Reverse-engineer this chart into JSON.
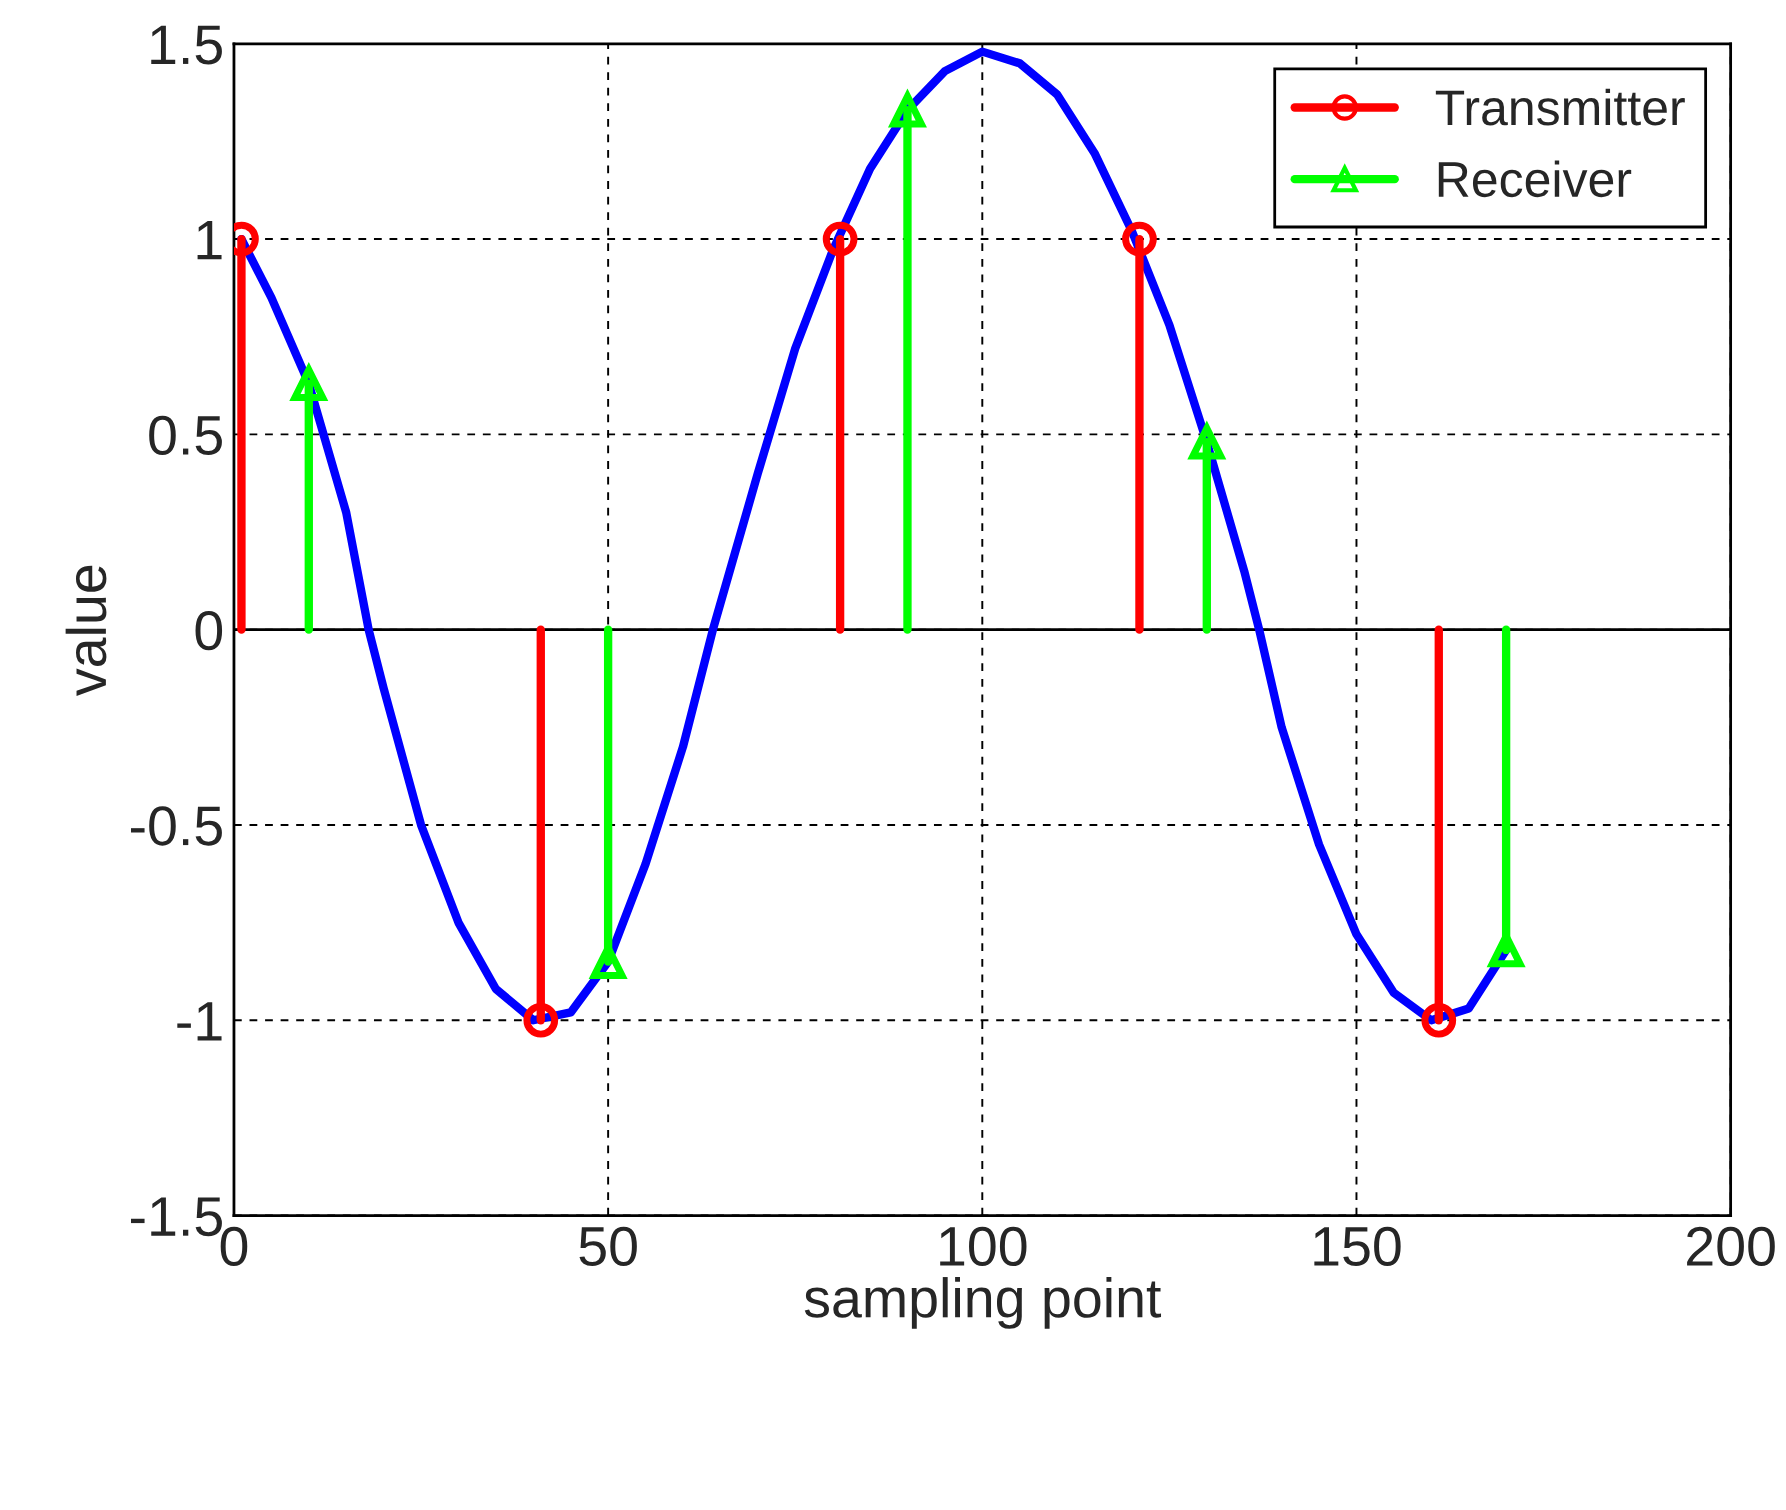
{
  "chart_data": {
    "type": "line",
    "xlabel": "sampling point",
    "ylabel": "value",
    "xlim": [
      0,
      200
    ],
    "xticks": [
      0,
      50,
      100,
      150,
      200
    ],
    "ylim": [
      -1.5,
      1.5
    ],
    "yticks": [
      -1.5,
      -1,
      -0.5,
      0,
      0.5,
      1,
      1.5
    ],
    "grid": true,
    "legend": "top right",
    "series": [
      {
        "color": "#0000ff",
        "marker": "none",
        "x": [
          1,
          5,
          10,
          15,
          18,
          20,
          25,
          30,
          35,
          40,
          45,
          50,
          55,
          60,
          64,
          70,
          75,
          80,
          85,
          90,
          95,
          100,
          105,
          110,
          115,
          120,
          125,
          130,
          135,
          137,
          140,
          145,
          150,
          155,
          160,
          165,
          170
        ],
        "values": [
          1.0,
          0.85,
          0.63,
          0.3,
          0.0,
          -0.15,
          -0.5,
          -0.75,
          -0.92,
          -1.0,
          -0.98,
          -0.85,
          -0.6,
          -0.3,
          0.0,
          0.4,
          0.72,
          0.97,
          1.18,
          1.33,
          1.43,
          1.48,
          1.45,
          1.37,
          1.22,
          1.02,
          0.78,
          0.48,
          0.15,
          0.0,
          -0.25,
          -0.55,
          -0.78,
          -0.93,
          -1.0,
          -0.97,
          -0.82
        ]
      },
      {
        "type": "lollipop",
        "name": "Transmitter",
        "color": "#ff0000",
        "marker": "circle",
        "x": [
          1,
          41,
          81,
          121,
          161
        ],
        "values": [
          1,
          -1,
          1,
          1,
          -1
        ]
      },
      {
        "type": "lollipop",
        "name": "Receiver",
        "color": "#00ff00",
        "marker": "triangle",
        "x": [
          10,
          50,
          90,
          130,
          170
        ],
        "values": [
          0.63,
          -0.85,
          1.33,
          0.48,
          -0.82
        ]
      }
    ]
  }
}
